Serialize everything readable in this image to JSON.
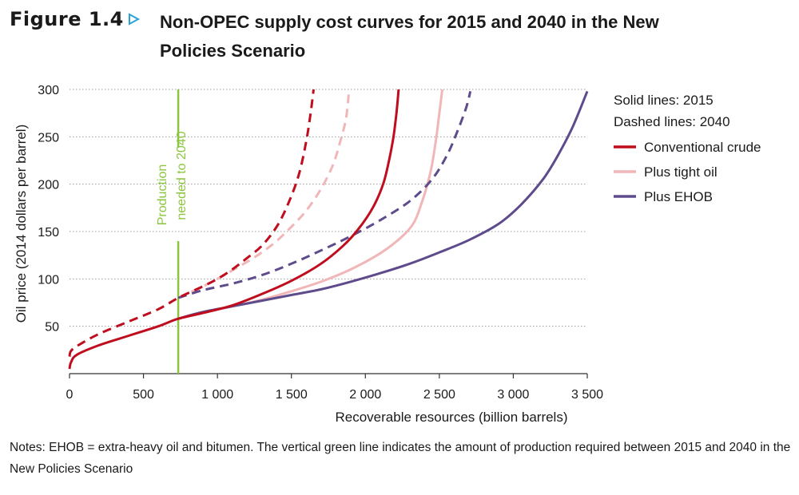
{
  "figure": {
    "label": "Figure 1.4",
    "title": "Non-OPEC supply cost curves for 2015 and 2040 in the New Policies Scenario"
  },
  "notes": "Notes: EHOB = extra-heavy oil and bitumen. The vertical green line indicates the amount of production required between 2015 and 2040 in the New Policies Scenario",
  "chart_data": {
    "type": "line",
    "xlabel": "Recoverable resources (billion barrels)",
    "ylabel": "Oil price (2014 dollars per barrel)",
    "xlim": [
      0,
      3500
    ],
    "ylim": [
      0,
      300
    ],
    "x_ticks": [
      0,
      500,
      1000,
      1500,
      2000,
      2500,
      3000,
      3500
    ],
    "x_tick_labels": [
      "0",
      "500",
      "1 000",
      "1 500",
      "2 000",
      "2 500",
      "3 000",
      "3 500"
    ],
    "y_ticks": [
      50,
      100,
      150,
      200,
      250,
      300
    ],
    "y_tick_labels": [
      "50",
      "100",
      "150",
      "200",
      "250",
      "300"
    ],
    "grid": "horizontal dotted",
    "legend": {
      "placement": "right",
      "notes": [
        "Solid lines: 2015",
        "Dashed lines: 2040"
      ],
      "entries": [
        {
          "name": "Conventional crude",
          "color": "#c00d1e"
        },
        {
          "name": "Plus tight oil",
          "color": "#f1b6b8"
        },
        {
          "name": "Plus EHOB",
          "color": "#5e4b8b"
        }
      ]
    },
    "annotation": {
      "text": "Production needed to 2040",
      "line1": "Production",
      "line2": "needed to 2040",
      "x": 735,
      "color": "#8cc63f"
    },
    "series": [
      {
        "name": "Conventional crude",
        "year": "2015",
        "style": "solid",
        "color": "#c00d1e",
        "points": [
          [
            0,
            5
          ],
          [
            10,
            12
          ],
          [
            50,
            20
          ],
          [
            200,
            30
          ],
          [
            400,
            40
          ],
          [
            600,
            50
          ],
          [
            735,
            58
          ],
          [
            900,
            64
          ],
          [
            1100,
            72
          ],
          [
            1300,
            84
          ],
          [
            1500,
            98
          ],
          [
            1700,
            116
          ],
          [
            1850,
            135
          ],
          [
            1950,
            152
          ],
          [
            2050,
            175
          ],
          [
            2120,
            200
          ],
          [
            2160,
            225
          ],
          [
            2190,
            250
          ],
          [
            2210,
            275
          ],
          [
            2225,
            300
          ]
        ]
      },
      {
        "name": "Plus tight oil",
        "year": "2015",
        "style": "solid",
        "color": "#f1b6b8",
        "points": [
          [
            735,
            58
          ],
          [
            900,
            64
          ],
          [
            1100,
            71
          ],
          [
            1300,
            78
          ],
          [
            1500,
            87
          ],
          [
            1700,
            97
          ],
          [
            1900,
            110
          ],
          [
            2100,
            127
          ],
          [
            2250,
            145
          ],
          [
            2330,
            160
          ],
          [
            2380,
            180
          ],
          [
            2420,
            200
          ],
          [
            2450,
            220
          ],
          [
            2480,
            250
          ],
          [
            2500,
            275
          ],
          [
            2520,
            300
          ]
        ]
      },
      {
        "name": "Plus EHOB",
        "year": "2015",
        "style": "solid",
        "color": "#5e4b8b",
        "points": [
          [
            735,
            58
          ],
          [
            900,
            65
          ],
          [
            1100,
            71
          ],
          [
            1300,
            77
          ],
          [
            1500,
            83
          ],
          [
            1700,
            89
          ],
          [
            1900,
            97
          ],
          [
            2100,
            106
          ],
          [
            2300,
            116
          ],
          [
            2500,
            128
          ],
          [
            2700,
            141
          ],
          [
            2900,
            158
          ],
          [
            3050,
            178
          ],
          [
            3200,
            205
          ],
          [
            3300,
            230
          ],
          [
            3400,
            260
          ],
          [
            3500,
            298
          ]
        ]
      },
      {
        "name": "Conventional crude",
        "year": "2040",
        "style": "dashed",
        "color": "#c00d1e",
        "points": [
          [
            0,
            18
          ],
          [
            10,
            24
          ],
          [
            60,
            30
          ],
          [
            200,
            42
          ],
          [
            400,
            55
          ],
          [
            600,
            68
          ],
          [
            735,
            80
          ],
          [
            900,
            92
          ],
          [
            1000,
            100
          ],
          [
            1100,
            110
          ],
          [
            1200,
            122
          ],
          [
            1300,
            135
          ],
          [
            1400,
            155
          ],
          [
            1480,
            180
          ],
          [
            1550,
            210
          ],
          [
            1600,
            245
          ],
          [
            1630,
            275
          ],
          [
            1650,
            300
          ]
        ]
      },
      {
        "name": "Plus tight oil",
        "year": "2040",
        "style": "dashed",
        "color": "#f1b6b8",
        "points": [
          [
            735,
            80
          ],
          [
            900,
            92
          ],
          [
            1000,
            100
          ],
          [
            1100,
            109
          ],
          [
            1200,
            118
          ],
          [
            1300,
            128
          ],
          [
            1400,
            140
          ],
          [
            1500,
            155
          ],
          [
            1600,
            172
          ],
          [
            1700,
            195
          ],
          [
            1780,
            220
          ],
          [
            1830,
            245
          ],
          [
            1870,
            270
          ],
          [
            1890,
            300
          ]
        ]
      },
      {
        "name": "Plus EHOB",
        "year": "2040",
        "style": "dashed",
        "color": "#5e4b8b",
        "points": [
          [
            735,
            80
          ],
          [
            900,
            88
          ],
          [
            1100,
            95
          ],
          [
            1300,
            104
          ],
          [
            1500,
            116
          ],
          [
            1700,
            130
          ],
          [
            1900,
            145
          ],
          [
            2100,
            162
          ],
          [
            2300,
            182
          ],
          [
            2450,
            205
          ],
          [
            2550,
            230
          ],
          [
            2620,
            255
          ],
          [
            2680,
            280
          ],
          [
            2710,
            298
          ]
        ]
      }
    ]
  }
}
